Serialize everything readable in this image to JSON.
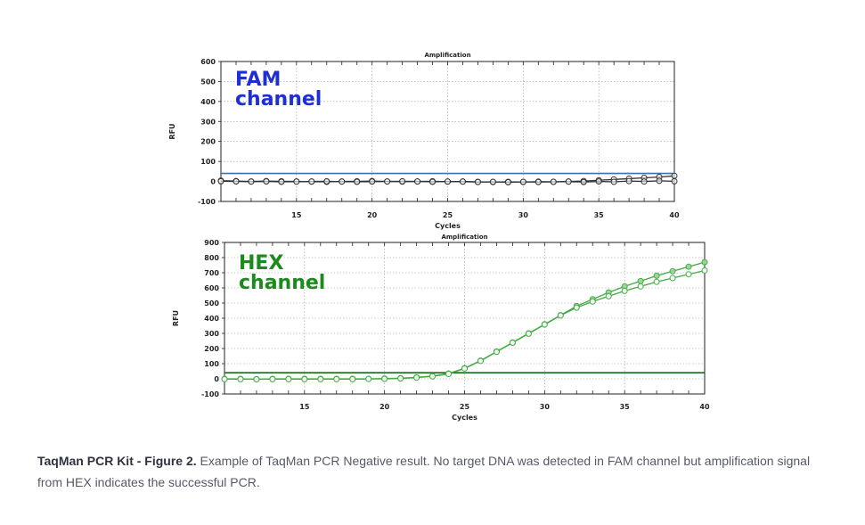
{
  "chart_data": [
    {
      "type": "line",
      "title": "Amplification",
      "xlabel": "Cycles",
      "ylabel": "RFU",
      "annotation": "FAM\nchannel",
      "xlim": [
        10,
        40
      ],
      "ylim": [
        -100,
        600
      ],
      "xticks": [
        15,
        20,
        25,
        30,
        35,
        40
      ],
      "yticks": [
        -100,
        0,
        100,
        200,
        300,
        400,
        500,
        600
      ],
      "threshold": 40,
      "colors": {
        "threshold": "#3a6fb0",
        "series": "#333333",
        "annotation": "#1f2fd6",
        "grid": "#9a9a9a"
      },
      "series": [
        {
          "x": [
            10,
            11,
            12,
            13,
            14,
            15,
            16,
            17,
            18,
            19,
            20,
            21,
            22,
            23,
            24,
            25,
            26,
            27,
            28,
            29,
            30,
            31,
            32,
            33,
            34,
            35,
            36,
            37,
            38,
            39,
            40
          ],
          "values": [
            4,
            2,
            0,
            2,
            1,
            0,
            -1,
            -2,
            0,
            1,
            2,
            0,
            -1,
            0,
            1,
            -1,
            0,
            -2,
            -3,
            -2,
            -3,
            -1,
            -2,
            0,
            2,
            6,
            10,
            14,
            18,
            22,
            28
          ]
        },
        {
          "x": [
            10,
            11,
            12,
            13,
            14,
            15,
            16,
            17,
            18,
            19,
            20,
            21,
            22,
            23,
            24,
            25,
            26,
            27,
            28,
            29,
            30,
            31,
            32,
            33,
            34,
            35,
            36,
            37,
            38,
            39,
            40
          ],
          "values": [
            1,
            0,
            -1,
            0,
            -2,
            -1,
            0,
            1,
            -1,
            -2,
            -1,
            0,
            1,
            0,
            -2,
            0,
            -1,
            -3,
            -2,
            -4,
            -2,
            -3,
            -2,
            -1,
            -3,
            0,
            -2,
            2,
            0,
            3,
            1
          ]
        }
      ]
    },
    {
      "type": "line",
      "title": "Amplification",
      "xlabel": "Cycles",
      "ylabel": "RFU",
      "annotation": "HEX\nchannel",
      "xlim": [
        10,
        40
      ],
      "ylim": [
        -100,
        900
      ],
      "xticks": [
        15,
        20,
        25,
        30,
        35,
        40
      ],
      "yticks": [
        -100,
        0,
        100,
        200,
        300,
        400,
        500,
        600,
        700,
        800,
        900
      ],
      "threshold": 40,
      "colors": {
        "threshold": "#1a6a1a",
        "series": "#44aa44",
        "annotation": "#1c8a1c",
        "grid": "#9a9a9a"
      },
      "series": [
        {
          "x": [
            10,
            11,
            12,
            13,
            14,
            15,
            16,
            17,
            18,
            19,
            20,
            21,
            22,
            23,
            24,
            25,
            26,
            27,
            28,
            29,
            30,
            31,
            32,
            33,
            34,
            35,
            36,
            37,
            38,
            39,
            40
          ],
          "values": [
            0,
            0,
            -2,
            0,
            0,
            0,
            0,
            0,
            0,
            0,
            2,
            4,
            10,
            18,
            35,
            70,
            120,
            180,
            240,
            300,
            360,
            420,
            480,
            525,
            570,
            610,
            645,
            680,
            710,
            740,
            770
          ]
        },
        {
          "x": [
            10,
            11,
            12,
            13,
            14,
            15,
            16,
            17,
            18,
            19,
            20,
            21,
            22,
            23,
            24,
            25,
            26,
            27,
            28,
            29,
            30,
            31,
            32,
            33,
            34,
            35,
            36,
            37,
            38,
            39,
            40
          ],
          "values": [
            -2,
            -2,
            -3,
            -2,
            -2,
            -2,
            -2,
            -2,
            -2,
            -1,
            0,
            2,
            8,
            16,
            32,
            68,
            118,
            178,
            238,
            298,
            358,
            418,
            470,
            510,
            545,
            580,
            610,
            640,
            665,
            690,
            715
          ]
        }
      ]
    }
  ],
  "caption": {
    "bold": "TaqMan PCR Kit - Figure 2.",
    "text": " Example of TaqMan PCR Negative result. No target DNA was detected in FAM channel but amplification signal from HEX indicates the successful PCR."
  }
}
